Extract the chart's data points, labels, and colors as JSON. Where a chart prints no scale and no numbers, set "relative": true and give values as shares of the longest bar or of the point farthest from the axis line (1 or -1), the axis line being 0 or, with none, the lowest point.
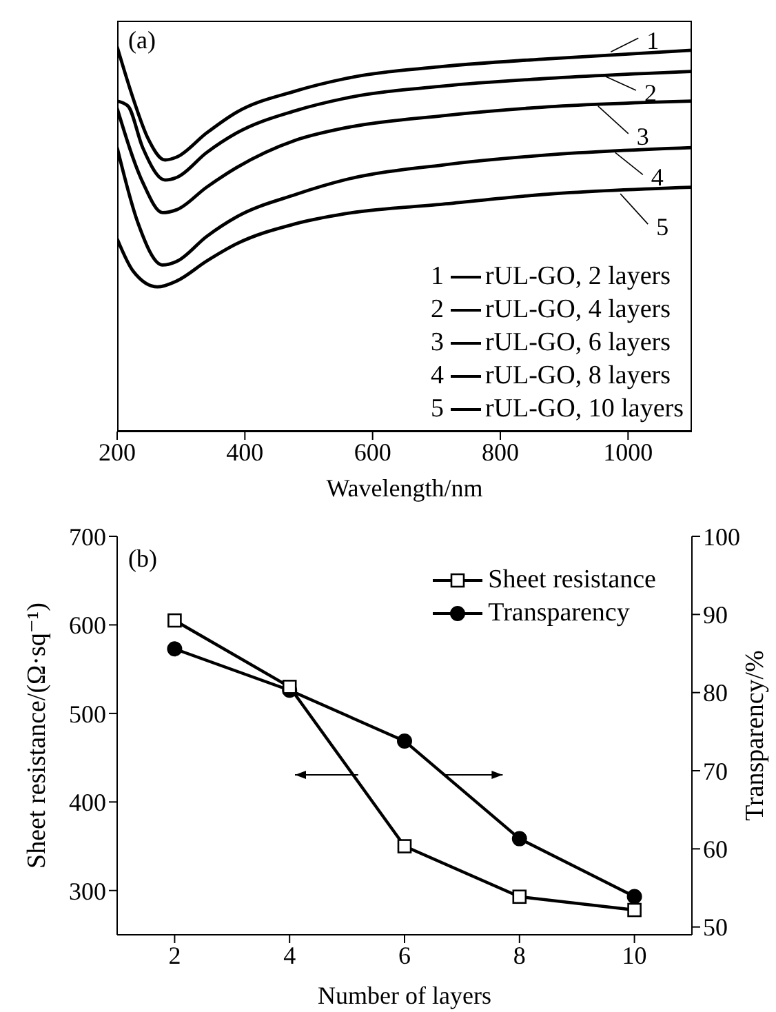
{
  "chart_data": [
    {
      "type": "line",
      "title": "(a)",
      "xlabel": "Wavelength/nm",
      "relative": true,
      "xlim": [
        200,
        1100
      ],
      "xticks": [
        200,
        400,
        600,
        800,
        1000
      ],
      "grid": false,
      "legend": "bottom right",
      "marker": "none",
      "line_style": "solid",
      "series": [
        {
          "name": "rUL-GO, 2 layers",
          "color": "#000000",
          "x": [
            200,
            225,
            248,
            275,
            294,
            340,
            387,
            479,
            556,
            710,
            865,
            1100
          ],
          "values": [
            1.0,
            0.866,
            0.763,
            0.706,
            0.714,
            0.776,
            0.83,
            0.885,
            0.917,
            0.949,
            0.968,
            0.991
          ]
        },
        {
          "name": "rUL-GO, 4 layers",
          "color": "#000000",
          "x": [
            200,
            217,
            240,
            275,
            294,
            340,
            387,
            479,
            556,
            710,
            865,
            1100
          ],
          "values": [
            0.859,
            0.846,
            0.738,
            0.654,
            0.661,
            0.725,
            0.776,
            0.834,
            0.866,
            0.898,
            0.917,
            0.936
          ]
        },
        {
          "name": "rUL-GO, 6 layers",
          "color": "#000000",
          "x": [
            200,
            240,
            271,
            294,
            340,
            387,
            479,
            556,
            710,
            865,
            1100
          ],
          "values": [
            0.84,
            0.648,
            0.569,
            0.577,
            0.635,
            0.686,
            0.757,
            0.789,
            0.821,
            0.843,
            0.859
          ]
        },
        {
          "name": "rUL-GO, 8 layers",
          "color": "#000000",
          "x": [
            200,
            232,
            271,
            294,
            340,
            387,
            479,
            556,
            710,
            865,
            1100
          ],
          "values": [
            0.738,
            0.545,
            0.433,
            0.443,
            0.507,
            0.558,
            0.616,
            0.654,
            0.693,
            0.718,
            0.738
          ]
        },
        {
          "name": "rUL-GO, 10 layers",
          "color": "#000000",
          "x": [
            200,
            225,
            263,
            294,
            340,
            387,
            479,
            556,
            710,
            865,
            1100
          ],
          "values": [
            0.501,
            0.417,
            0.376,
            0.392,
            0.443,
            0.488,
            0.54,
            0.566,
            0.591,
            0.616,
            0.635
          ]
        }
      ],
      "annotations": [
        {
          "text": "1",
          "x": 973,
          "y": 0.987
        },
        {
          "text": "2",
          "x": 965,
          "y": 0.923
        },
        {
          "text": "3",
          "x": 953,
          "y": 0.846
        },
        {
          "text": "4",
          "x": 980,
          "y": 0.725
        },
        {
          "text": "5",
          "x": 988,
          "y": 0.618
        }
      ]
    },
    {
      "type": "line",
      "title": "(b)",
      "xlabel": "Number of layers",
      "ylabel": "Sheet resistance/(Ω·sq⁻¹)",
      "y2label": "Transparency/%",
      "x": [
        2,
        4,
        6,
        8,
        10
      ],
      "xlim": [
        1,
        11
      ],
      "xticks": [
        2,
        4,
        6,
        8,
        10
      ],
      "ylim": [
        250,
        700
      ],
      "yticks": [
        300,
        400,
        500,
        600,
        700
      ],
      "y2lim": [
        49,
        100
      ],
      "y2ticks": [
        50,
        60,
        70,
        80,
        90,
        100
      ],
      "grid": false,
      "legend": "top right",
      "line_style": "solid",
      "series": [
        {
          "name": "Sheet resistance",
          "color": "#000000",
          "marker": "square",
          "values": [
            605,
            530,
            350,
            293,
            278
          ]
        },
        {
          "name": "Transparency",
          "color": "#000000",
          "marker": "circle",
          "axis": "y2",
          "values": [
            85.6,
            80.3,
            73.8,
            61.3,
            53.9
          ]
        }
      ]
    }
  ]
}
